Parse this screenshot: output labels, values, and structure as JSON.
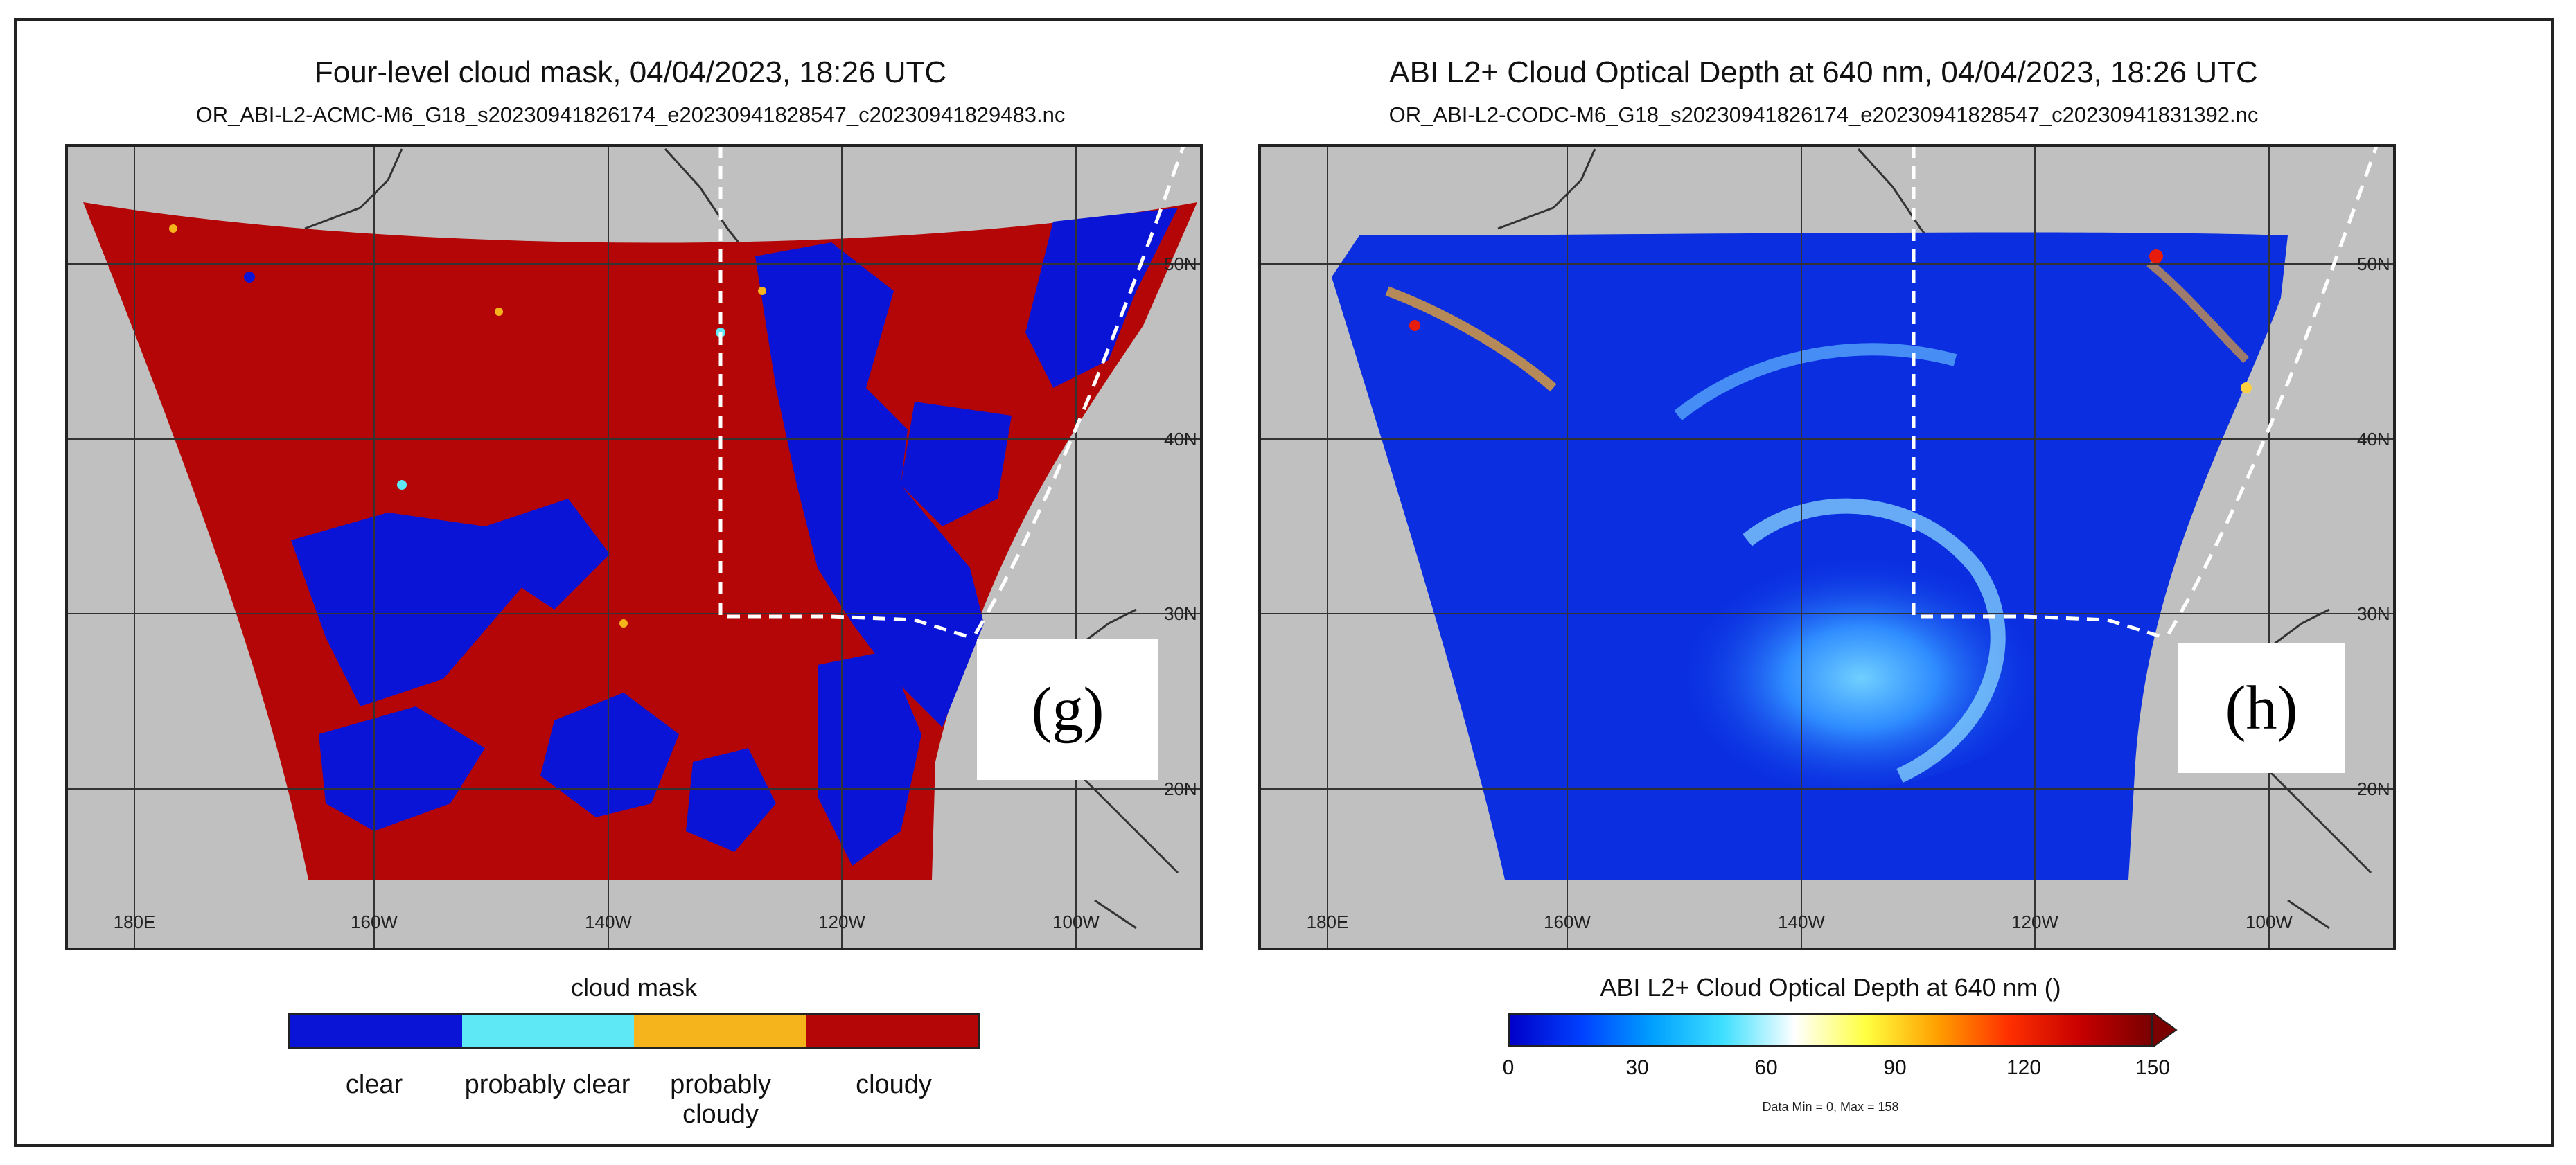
{
  "panels": [
    {
      "title": "Four-level cloud mask, 04/04/2023, 18:26 UTC",
      "filename": "OR_ABI-L2-ACMC-M6_G18_s20230941826174_e20230941828547_c20230941829483.nc",
      "label": "(g)",
      "lon_labels": [
        "180E",
        "160W",
        "140W",
        "120W",
        "100W"
      ],
      "lat_labels": [
        "50N",
        "40N",
        "30N",
        "20N"
      ],
      "colorbar": {
        "title": "cloud mask",
        "categories": [
          {
            "label": "clear",
            "color": "#0a14d6"
          },
          {
            "label": "probably clear",
            "color": "#5ee8f5"
          },
          {
            "label": "probably cloudy",
            "color": "#f6b41c"
          },
          {
            "label": "cloudy",
            "color": "#b40606"
          }
        ]
      }
    },
    {
      "title": "ABI L2+ Cloud Optical Depth at 640 nm, 04/04/2023, 18:26 UTC",
      "filename": "OR_ABI-L2-CODC-M6_G18_s20230941826174_e20230941828547_c20230941831392.nc",
      "label": "(h)",
      "lon_labels": [
        "180E",
        "160W",
        "140W",
        "120W",
        "100W"
      ],
      "lat_labels": [
        "50N",
        "40N",
        "30N",
        "20N"
      ],
      "colorbar": {
        "title": "ABI L2+ Cloud Optical Depth at 640 nm ()",
        "ticks": [
          "0",
          "30",
          "60",
          "90",
          "120",
          "150"
        ],
        "range": [
          0,
          150
        ],
        "footnote": "Data Min = 0, Max = 158",
        "colors": [
          "#0000c8",
          "#0040ff",
          "#00a0ff",
          "#40e0ff",
          "#ffffff",
          "#ffff40",
          "#ffa000",
          "#ff3000",
          "#c80000",
          "#7a0000"
        ]
      }
    }
  ],
  "colors": {
    "land": "#c0c0c0",
    "cloudy": "#b40606",
    "clear": "#0a14d6",
    "cod_background": "#0a2ee0"
  }
}
